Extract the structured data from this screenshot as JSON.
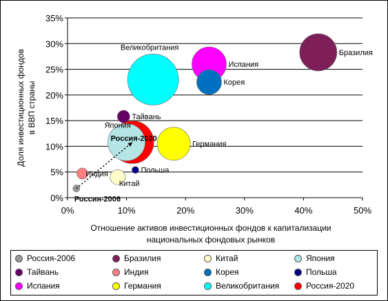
{
  "chart_data": {
    "type": "bubble",
    "xlabel": "Отношение активов инвестиционных фондов к капитализации национальных фондовых рынков",
    "xlabel_lines": [
      "Отношение активов инвестиционных фондов к капитализации",
      "национальных фондовых рынков"
    ],
    "ylabel": "Доля инвестиционных фондов в ВВП страны",
    "ylabel_lines": [
      "Доля инвестиционных фондов",
      "в ВВП страны"
    ],
    "xlim": [
      0,
      50
    ],
    "ylim": [
      0,
      35
    ],
    "x_ticks": [
      0,
      10,
      20,
      30,
      40,
      50
    ],
    "y_ticks": [
      0,
      5,
      10,
      15,
      20,
      25,
      30,
      35
    ],
    "x_tick_labels": [
      "0%",
      "10%",
      "20%",
      "30%",
      "40%",
      "50%"
    ],
    "y_tick_labels": [
      "0%",
      "5%",
      "10%",
      "15%",
      "20%",
      "25%",
      "30%",
      "35%"
    ],
    "grid": "horizontal",
    "legend_position": "bottom",
    "series": [
      {
        "name": "Россия-2006",
        "label": "Россия-2006",
        "x": 1.5,
        "y": 1.8,
        "size": 5,
        "color": "#999999",
        "label_pos": "below",
        "bold": true
      },
      {
        "name": "Бразилия",
        "label": "Бразилия",
        "x": 42.5,
        "y": 28.3,
        "size": 27,
        "color": "#7F1F5A",
        "label_pos": "right"
      },
      {
        "name": "Китай",
        "label": "Китай",
        "x": 8.5,
        "y": 4.0,
        "size": 11,
        "color": "#FFFFCC",
        "label_pos": "right-below"
      },
      {
        "name": "Япония",
        "label": "Япония",
        "x": 10.0,
        "y": 10.8,
        "size": 27,
        "color": "#B4E6E6",
        "label_pos": "left-above"
      },
      {
        "name": "Тайвань",
        "label": "Тайвань",
        "x": 9.5,
        "y": 15.8,
        "size": 9,
        "color": "#660066",
        "label_pos": "right"
      },
      {
        "name": "Индия",
        "label": "Индия",
        "x": 2.5,
        "y": 4.7,
        "size": 8,
        "color": "#FF8080",
        "label_pos": "right"
      },
      {
        "name": "Корея",
        "label": "Корея",
        "x": 24.0,
        "y": 22.5,
        "size": 18,
        "color": "#0070C0",
        "label_pos": "right"
      },
      {
        "name": "Польша",
        "label": "Польша",
        "x": 11.5,
        "y": 5.4,
        "size": 5,
        "color": "#000080",
        "label_pos": "right"
      },
      {
        "name": "Испания",
        "label": "Испания",
        "x": 24.0,
        "y": 26.0,
        "size": 25,
        "color": "#FF00FF",
        "label_pos": "right"
      },
      {
        "name": "Германия",
        "label": "Германия",
        "x": 18.0,
        "y": 10.5,
        "size": 24,
        "color": "#FFFF00",
        "label_pos": "right"
      },
      {
        "name": "Великобритания",
        "label": "Великобритания",
        "x": 14.5,
        "y": 23.0,
        "size": 37,
        "color": "#00FFFF",
        "label_pos": "above"
      },
      {
        "name": "Россия-2020",
        "label": "Россия-2020",
        "x": 11.0,
        "y": 10.8,
        "size": 31,
        "color": "#FF0000",
        "label_pos": "inside",
        "bold": true
      }
    ],
    "arrow": {
      "from": "Россия-2006",
      "to": "Россия-2020",
      "style": "dotted"
    }
  },
  "legend": {
    "items": [
      {
        "label": "Россия-2006",
        "color": "#999999"
      },
      {
        "label": "Бразилия",
        "color": "#7F1F5A"
      },
      {
        "label": "Китай",
        "color": "#FFFFCC"
      },
      {
        "label": "Япония",
        "color": "#B4E6E6"
      },
      {
        "label": "Тайвань",
        "color": "#660066"
      },
      {
        "label": "Индия",
        "color": "#FF8080"
      },
      {
        "label": "Корея",
        "color": "#0070C0"
      },
      {
        "label": "Польша",
        "color": "#000080"
      },
      {
        "label": "Испания",
        "color": "#FF00FF"
      },
      {
        "label": "Германия",
        "color": "#FFFF00"
      },
      {
        "label": "Великобритания",
        "color": "#00FFFF"
      },
      {
        "label": "Россия-2020",
        "color": "#FF0000"
      }
    ]
  }
}
